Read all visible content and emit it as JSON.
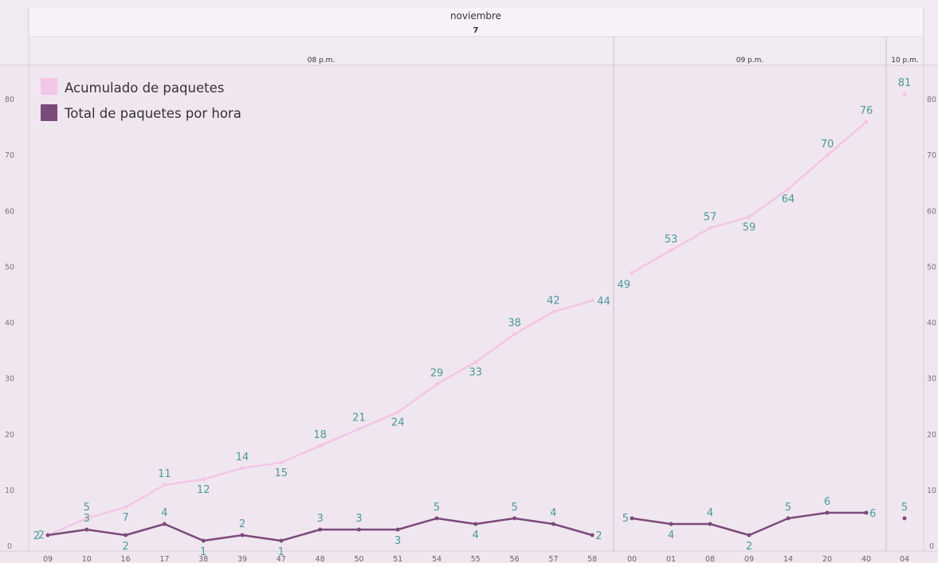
{
  "chart_data": {
    "type": "line",
    "header": {
      "month": "noviembre",
      "day": "7"
    },
    "hour_groups": [
      {
        "label": "08 p.m.",
        "minutes": [
          "09",
          "10",
          "16",
          "17",
          "38",
          "39",
          "47",
          "48",
          "50",
          "51",
          "54",
          "55",
          "56",
          "57",
          "58"
        ]
      },
      {
        "label": "09 p.m.",
        "minutes": [
          "00",
          "01",
          "08",
          "09",
          "14",
          "20",
          "40"
        ]
      },
      {
        "label": "10 p.m.",
        "minutes": [
          "04"
        ]
      }
    ],
    "y_range": [
      0,
      85
    ],
    "y_ticks": [
      0,
      10,
      20,
      30,
      40,
      50,
      60,
      70,
      80
    ],
    "legend_position": "top-left",
    "series": [
      {
        "name": "Acumulado de paquetes",
        "color": "#f2c6e6",
        "values": [
          [
            2,
            5,
            7,
            11,
            12,
            14,
            15,
            18,
            21,
            24,
            29,
            33,
            38,
            42,
            44
          ],
          [
            49,
            53,
            57,
            59,
            64,
            70,
            76
          ],
          [
            81
          ]
        ]
      },
      {
        "name": "Total de paquetes por hora",
        "color": "#7b4a7a",
        "values": [
          [
            2,
            3,
            2,
            4,
            1,
            2,
            1,
            3,
            3,
            3,
            5,
            4,
            5,
            4,
            2
          ],
          [
            5,
            4,
            4,
            2,
            5,
            6,
            6
          ],
          [
            5
          ]
        ]
      }
    ],
    "label_color": "#4a9a9a",
    "grid": false
  }
}
